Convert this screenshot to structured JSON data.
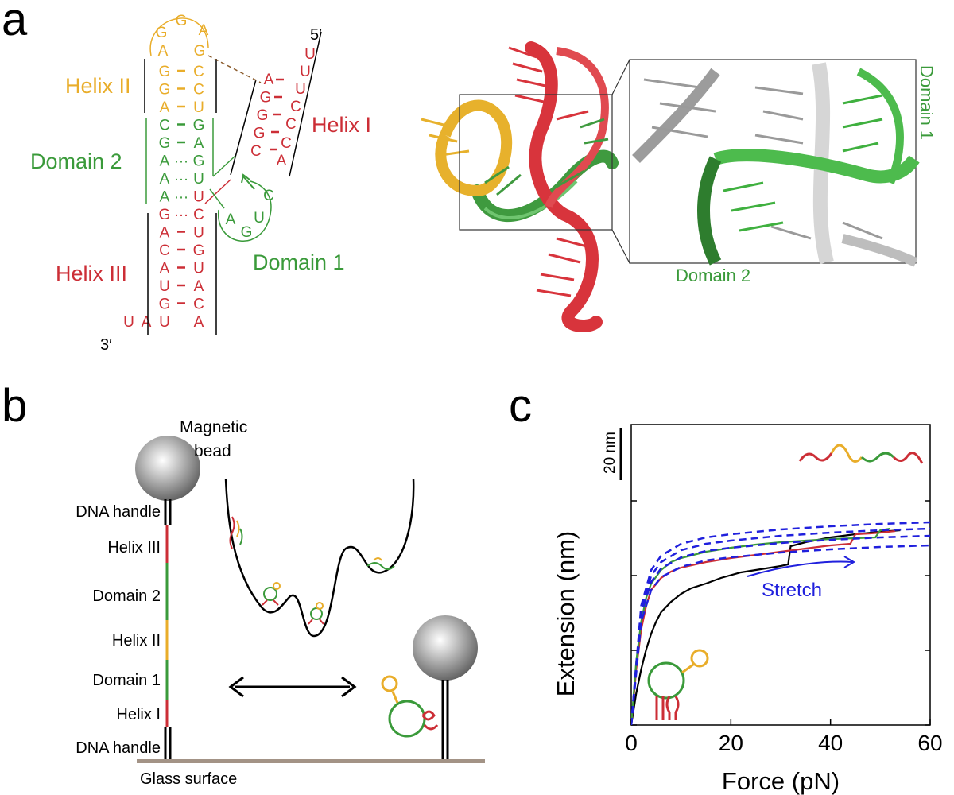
{
  "panels": {
    "a": "a",
    "b": "b",
    "c": "c"
  },
  "colors": {
    "helix_I": "#cc2e36",
    "helix_II": "#e9ad2a",
    "helix_III": "#cc2e36",
    "domain": "#3a9a3a",
    "fit": "#2020dd",
    "black": "#000000"
  },
  "panel_a": {
    "five_prime": "5′",
    "three_prime": "3′",
    "helix_I_label": "Helix I",
    "helix_II_label": "Helix II",
    "helix_III_label": "Helix III",
    "domain_1_label": "Domain 1",
    "domain_2_label": "Domain 2",
    "zoom_domain_1_label": "Domain 1",
    "zoom_domain_2_label": "Domain 2",
    "loop_top": [
      "G",
      "G",
      "A",
      "A",
      "G"
    ],
    "stem_left": [
      {
        "nt": "G",
        "group": "helix_II"
      },
      {
        "nt": "G",
        "group": "helix_II"
      },
      {
        "nt": "A",
        "group": "helix_II"
      },
      {
        "nt": "C",
        "group": "domain"
      },
      {
        "nt": "G",
        "group": "domain"
      },
      {
        "nt": "A",
        "group": "domain"
      },
      {
        "nt": "A",
        "group": "domain"
      },
      {
        "nt": "A",
        "group": "domain"
      },
      {
        "nt": "G",
        "group": "helix_III"
      },
      {
        "nt": "A",
        "group": "helix_III"
      },
      {
        "nt": "C",
        "group": "helix_III"
      },
      {
        "nt": "A",
        "group": "helix_III"
      },
      {
        "nt": "U",
        "group": "helix_III"
      },
      {
        "nt": "G",
        "group": "helix_III"
      },
      {
        "nt": "U",
        "group": "helix_III"
      }
    ],
    "stem_right": [
      {
        "nt": "C",
        "group": "helix_II"
      },
      {
        "nt": "C",
        "group": "helix_II"
      },
      {
        "nt": "U",
        "group": "helix_II"
      },
      {
        "nt": "G",
        "group": "domain"
      },
      {
        "nt": "A",
        "group": "domain"
      },
      {
        "nt": "G",
        "group": "domain"
      },
      {
        "nt": "U",
        "group": "domain"
      },
      {
        "nt": "U",
        "group": "helix_III"
      },
      {
        "nt": "C",
        "group": "helix_III"
      },
      {
        "nt": "U",
        "group": "helix_III"
      },
      {
        "nt": "G",
        "group": "helix_III"
      },
      {
        "nt": "U",
        "group": "helix_III"
      },
      {
        "nt": "A",
        "group": "helix_III"
      },
      {
        "nt": "C",
        "group": "helix_III"
      },
      {
        "nt": "A",
        "group": "helix_III"
      }
    ],
    "pair_types": [
      "-",
      "-",
      "-",
      "-",
      "-",
      "…",
      "…",
      "…",
      "…",
      "-",
      "-",
      "-",
      "-",
      "-",
      "-"
    ],
    "tail_3p": [
      "U",
      "A"
    ],
    "helix_I_left": [
      "A",
      "G",
      "G",
      "G",
      "C"
    ],
    "helix_I_right": [
      "U",
      "U",
      "U",
      "C",
      "C",
      "C",
      "A"
    ],
    "helix_I_pair_types": [
      "-",
      "-",
      "-",
      "-",
      "-"
    ],
    "domain_1_loop": [
      "A",
      "G",
      "U",
      "C"
    ]
  },
  "panel_b": {
    "magnetic_bead": "Magnetic\nbead",
    "segments": [
      "DNA handle",
      "Helix III",
      "Domain 2",
      "Helix II",
      "Domain 1",
      "Helix I",
      "DNA handle"
    ],
    "glass_surface": "Glass surface"
  },
  "chart_data": {
    "type": "line",
    "xlabel": "Force (pN)",
    "ylabel": "Extension (nm)",
    "xlim": [
      0,
      60
    ],
    "x_ticks": [
      "0",
      "20",
      "40",
      "60"
    ],
    "scale_bar": "20 nm",
    "annotation": "Stretch",
    "series": [
      {
        "color": "#000000",
        "x": [
          0,
          1,
          2,
          3,
          4,
          5,
          6,
          8,
          10,
          12,
          15,
          18,
          22,
          26,
          30,
          31.5,
          32,
          35,
          40,
          45,
          50,
          54
        ],
        "y": [
          0,
          40,
          70,
          95,
          115,
          130,
          142,
          155,
          165,
          172,
          178,
          185,
          192,
          196,
          200,
          202,
          225,
          230,
          236,
          240,
          243,
          245
        ]
      },
      {
        "color": "#cc2e36",
        "x": [
          0,
          1,
          2,
          3,
          4,
          6,
          8,
          10,
          15,
          20,
          25,
          30,
          35,
          40,
          44,
          45,
          48,
          50,
          53
        ],
        "y": [
          0,
          70,
          120,
          150,
          170,
          185,
          193,
          198,
          205,
          210,
          214,
          218,
          222,
          226,
          228,
          240,
          241,
          242,
          244
        ]
      },
      {
        "color": "#3a9a3a",
        "x": [
          0,
          1,
          2,
          3,
          4,
          6,
          8,
          10,
          15,
          20,
          25,
          30,
          35,
          40,
          45,
          49,
          50,
          52
        ],
        "y": [
          0,
          80,
          130,
          160,
          178,
          195,
          205,
          210,
          218,
          223,
          227,
          230,
          232,
          234,
          235,
          236,
          245,
          247
        ]
      },
      {
        "color": "#2020dd",
        "dashed": true,
        "x": [
          0,
          2,
          4,
          6,
          10,
          15,
          20,
          30,
          40,
          50,
          60
        ],
        "y": [
          0,
          150,
          195,
          213,
          228,
          236,
          240,
          246,
          250,
          253,
          255
        ]
      },
      {
        "color": "#2020dd",
        "dashed": true,
        "x": [
          0,
          2,
          4,
          6,
          10,
          15,
          20,
          30,
          40,
          50,
          60
        ],
        "y": [
          0,
          145,
          188,
          205,
          220,
          228,
          232,
          238,
          242,
          245,
          247
        ]
      },
      {
        "color": "#2020dd",
        "dashed": true,
        "x": [
          0,
          2,
          4,
          6,
          10,
          15,
          20,
          30,
          40,
          50,
          60
        ],
        "y": [
          0,
          140,
          180,
          197,
          211,
          219,
          223,
          229,
          233,
          236,
          238
        ]
      },
      {
        "color": "#2020dd",
        "dashed": true,
        "x": [
          0,
          2,
          4,
          6,
          10,
          15,
          20,
          30,
          40,
          50,
          60
        ],
        "y": [
          0,
          130,
          170,
          186,
          199,
          207,
          211,
          217,
          221,
          224,
          226
        ]
      }
    ]
  }
}
